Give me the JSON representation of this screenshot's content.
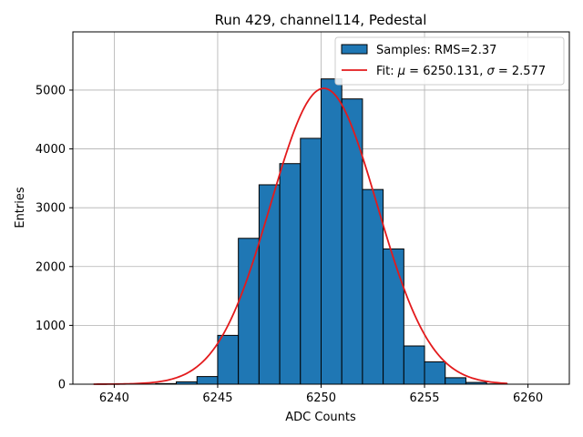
{
  "chart_data": {
    "type": "bar",
    "title": "Run 429, channel114, Pedestal",
    "xlabel": "ADC Counts",
    "ylabel": "Entries",
    "xlim": [
      6238,
      6262
    ],
    "ylim": [
      0,
      5990
    ],
    "xticks": [
      6240,
      6245,
      6250,
      6255,
      6260
    ],
    "yticks": [
      0,
      1000,
      2000,
      3000,
      4000,
      5000
    ],
    "grid": true,
    "legend_position": "top-right",
    "bar_color": "#1f77b4",
    "fit_color": "#e31a1c",
    "series": [
      {
        "name": "Samples: RMS=2.37",
        "type": "histogram",
        "bin_edges": [
          6239,
          6240,
          6241,
          6242,
          6243,
          6244,
          6245,
          6246,
          6247,
          6248,
          6249,
          6250,
          6251,
          6252,
          6253,
          6254,
          6255,
          6256,
          6257,
          6258,
          6259
        ],
        "counts": [
          0,
          0,
          3,
          10,
          40,
          130,
          830,
          2480,
          3390,
          3750,
          4180,
          5190,
          4850,
          3310,
          2300,
          650,
          380,
          110,
          30,
          5
        ]
      },
      {
        "name": "Fit: μ = 6250.131, σ = 2.577",
        "type": "gaussian",
        "mu": 6250.131,
        "sigma": 2.577,
        "amplitude": 5030,
        "x_range": [
          6239,
          6259
        ]
      }
    ]
  }
}
